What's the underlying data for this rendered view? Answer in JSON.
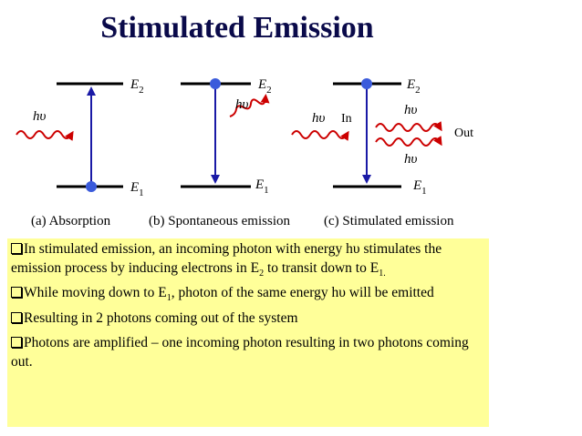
{
  "title": "Stimulated Emission",
  "diagram": {
    "panels": [
      {
        "e2_label": "E",
        "e2_sub": "2",
        "e1_label": "E",
        "e1_sub": "1",
        "photon_label": "hυ"
      },
      {
        "e2_label": "E",
        "e2_sub": "2",
        "e1_label": "E",
        "e1_sub": "1",
        "photon_label": "hυ"
      },
      {
        "e2_label": "E",
        "e2_sub": "2",
        "e1_label": "E",
        "e1_sub": "1",
        "photon_in_label": "hυ",
        "photon_out_top_label": "hυ",
        "photon_out_bottom_label": "hυ",
        "in_label": "In",
        "out_label": "Out"
      }
    ],
    "captions": [
      "(a) Absorption",
      "(b) Spontaneous emission",
      "(c) Stimulated emission"
    ],
    "colors": {
      "arrow": "#1a1aa6",
      "electron": "#3b5bdb",
      "photon": "#cc0000",
      "box": "#ffff99"
    }
  },
  "bullets": [
    {
      "pre": "In stimulated emission, an incoming photon with energy hυ stimulates the emission process by inducing electrons in E",
      "sub": "2",
      "post": " to transit down to E",
      "sub2": "1.",
      "post2": ""
    },
    {
      "pre": "While moving down to E",
      "sub": "1",
      "post": ", photon of the same energy hυ will be emitted",
      "sub2": "",
      "post2": ""
    },
    {
      "pre": "Resulting in 2 photons coming out of the system",
      "sub": "",
      "post": "",
      "sub2": "",
      "post2": ""
    },
    {
      "pre": "Photons are amplified – one incoming photon resulting in two photons coming out.",
      "sub": "",
      "post": "",
      "sub2": "",
      "post2": ""
    }
  ]
}
